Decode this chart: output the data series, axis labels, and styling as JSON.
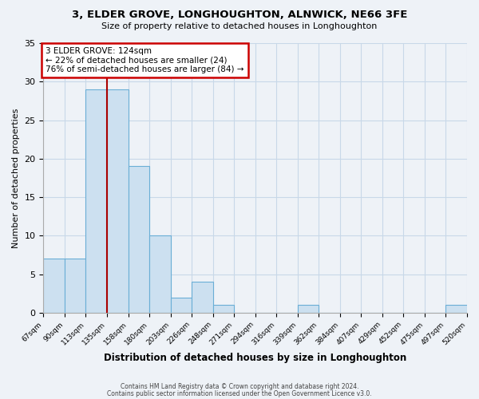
{
  "title": "3, ELDER GROVE, LONGHOUGHTON, ALNWICK, NE66 3FE",
  "subtitle": "Size of property relative to detached houses in Longhoughton",
  "xlabel": "Distribution of detached houses by size in Longhoughton",
  "ylabel": "Number of detached properties",
  "bin_labels": [
    "67sqm",
    "90sqm",
    "113sqm",
    "135sqm",
    "158sqm",
    "180sqm",
    "203sqm",
    "226sqm",
    "248sqm",
    "271sqm",
    "294sqm",
    "316sqm",
    "339sqm",
    "362sqm",
    "384sqm",
    "407sqm",
    "429sqm",
    "452sqm",
    "475sqm",
    "497sqm",
    "520sqm"
  ],
  "bar_values": [
    7,
    7,
    29,
    29,
    19,
    10,
    2,
    4,
    1,
    0,
    0,
    0,
    1,
    0,
    0,
    0,
    0,
    0,
    0,
    1,
    0
  ],
  "bar_color": "#cce0f0",
  "bar_edge_color": "#6aaed6",
  "marker_line_color": "#aa0000",
  "annotation_line1": "3 ELDER GROVE: 124sqm",
  "annotation_line2": "← 22% of detached houses are smaller (24)",
  "annotation_line3": "76% of semi-detached houses are larger (84) →",
  "annotation_box_color": "#ffffff",
  "annotation_box_edge": "#cc0000",
  "ylim": [
    0,
    35
  ],
  "yticks": [
    0,
    5,
    10,
    15,
    20,
    25,
    30,
    35
  ],
  "footer1": "Contains HM Land Registry data © Crown copyright and database right 2024.",
  "footer2": "Contains public sector information licensed under the Open Government Licence v3.0.",
  "bg_color": "#eef2f7",
  "plot_bg_color": "#eef2f7",
  "grid_color": "#c8d8e8"
}
